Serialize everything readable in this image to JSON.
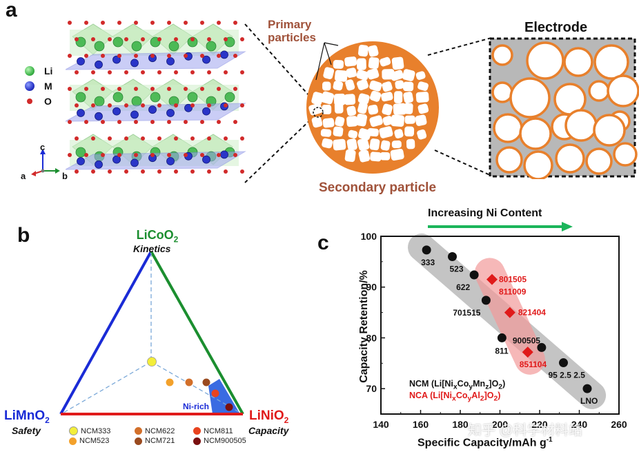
{
  "panel_a": {
    "letter": "a",
    "legend": [
      {
        "label": "Li",
        "color": "#3fb54a"
      },
      {
        "label": "M",
        "color": "#2a35c8"
      },
      {
        "label": "O",
        "color": "#d12a2a"
      }
    ],
    "axes": {
      "c": "c",
      "a": "a",
      "b": "b"
    },
    "primary_label_1": "Primary",
    "primary_label_2": "particles",
    "secondary_label": "Secondary particle",
    "electrode_label": "Electrode"
  },
  "panel_b": {
    "letter": "b",
    "top_formula": "LiCoO",
    "top_sub": "2",
    "top_property": "Kinetics",
    "left_formula": "LiMnO",
    "left_sub": "2",
    "left_property": "Safety",
    "right_formula": "LiNiO",
    "right_sub": "2",
    "right_property": "Capacity",
    "ni_rich": "Ni-rich",
    "legend": [
      {
        "label": "NCM333",
        "color": "#f3ee3a"
      },
      {
        "label": "NCM523",
        "color": "#f3a12b"
      },
      {
        "label": "NCM622",
        "color": "#d26f2a"
      },
      {
        "label": "NCM721",
        "color": "#9a4a1f"
      },
      {
        "label": "NCM811",
        "color": "#e8431f"
      },
      {
        "label": "NCM900505",
        "color": "#7a1010"
      }
    ],
    "colors": {
      "left_edge": "#1a2bd6",
      "right_edge": "#1b8e2f",
      "bottom_edge": "#e01a1a"
    }
  },
  "panel_c": {
    "letter": "c",
    "arrow_label": "Increasing Ni Content",
    "xlabel": "Specific Capacity/mAh g",
    "xlabel_sup": "-1",
    "ylabel": "Capacity Retention/%",
    "legend_ncm": "NCM (Li[Ni",
    "legend_ncm_full": "NCM (Li[NixCoyMnz]O2)",
    "legend_nca_full": "NCA (Li[NixCoyAl2]O2)",
    "watermark": "知乎 @科学材料站"
  },
  "chart_data": {
    "type": "scatter",
    "xlim": [
      140,
      260
    ],
    "ylim": [
      65,
      100
    ],
    "xticks": [
      140,
      160,
      180,
      200,
      220,
      240,
      260
    ],
    "yticks": [
      70,
      80,
      90,
      100
    ],
    "series": [
      {
        "name": "NCM (Li[NixCoyMnz]O2)",
        "color": "#111111",
        "marker": "circle",
        "points": [
          {
            "x": 163,
            "y": 97.3,
            "label": "333"
          },
          {
            "x": 176,
            "y": 96.0,
            "label": "523"
          },
          {
            "x": 187,
            "y": 92.4,
            "label": "622"
          },
          {
            "x": 193,
            "y": 87.4,
            "label": "701515"
          },
          {
            "x": 201,
            "y": 80.0,
            "label": "811"
          },
          {
            "x": 221,
            "y": 78.1,
            "label": "900505"
          },
          {
            "x": 232,
            "y": 75.1,
            "label": "95 2.5 2.5"
          },
          {
            "x": 244,
            "y": 70.0,
            "label": "LNO"
          }
        ]
      },
      {
        "name": "NCA (Li[NixCoyAl2]O2)",
        "color": "#e01a1a",
        "marker": "diamond",
        "points": [
          {
            "x": 196,
            "y": 91.5,
            "label": "801505"
          },
          {
            "x": 196,
            "y": 91.5,
            "label": "811009"
          },
          {
            "x": 205,
            "y": 85.0,
            "label": "821404"
          },
          {
            "x": 214,
            "y": 77.2,
            "label": "851104"
          }
        ]
      }
    ]
  }
}
